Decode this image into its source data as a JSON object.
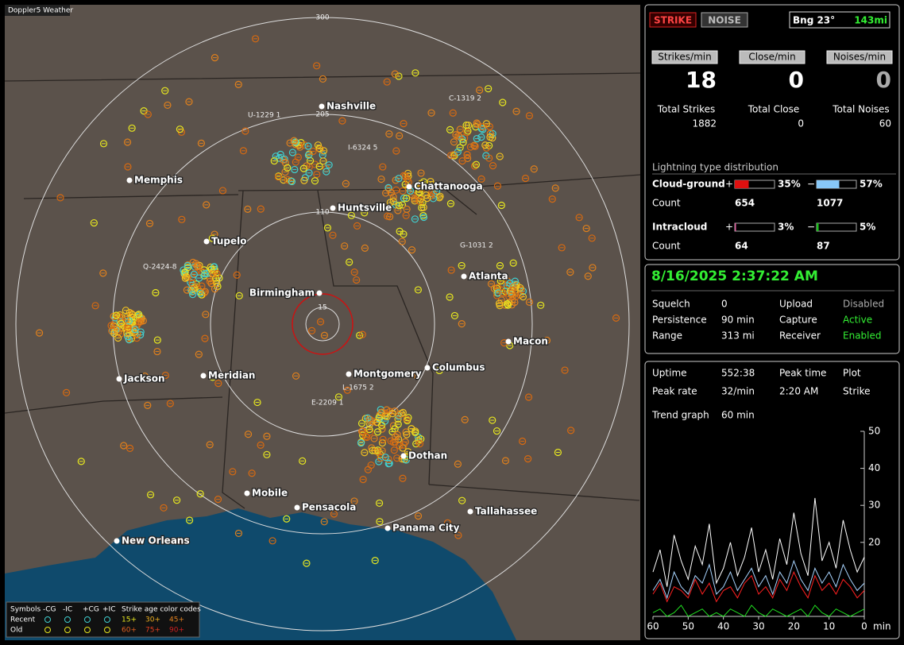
{
  "header": {
    "title": "Doppler5 Weather"
  },
  "map": {
    "ring_labels": [
      300,
      205,
      110,
      15
    ],
    "cities": [
      "Nashville",
      "Memphis",
      "Chattanooga",
      "Huntsville",
      "Tupelo",
      "Birmingham",
      "Atlanta",
      "Macon",
      "Montgomery",
      "Columbus",
      "Jackson",
      "Meridian",
      "Dothan",
      "Mobile",
      "Pensacola",
      "Tallahassee",
      "Panama City",
      "New Orleans"
    ],
    "cells": [
      "U-1229 1",
      "I-6324 5",
      "C-1319 2",
      "Q-2424-8",
      "G-1031 2",
      "L-1675 2",
      "E-2209 1"
    ]
  },
  "legend": {
    "title": "Symbols",
    "columns": [
      "-CG",
      "-IC",
      "+CG",
      "+IC"
    ],
    "age_title": "Strike age color codes",
    "rows": [
      {
        "label": "Recent",
        "ages": [
          "15+",
          "30+",
          "45+"
        ]
      },
      {
        "label": "Old",
        "ages": [
          "60+",
          "75+",
          "90+"
        ]
      }
    ]
  },
  "status": {
    "strike": "STRIKE",
    "noise": "NOISE",
    "bearing": "Bng 23°",
    "distance": "143mi"
  },
  "rates": [
    {
      "label": "Strikes/min",
      "value": 18,
      "total_label": "Total Strikes",
      "total": 1882
    },
    {
      "label": "Close/min",
      "value": 0,
      "total_label": "Total Close",
      "total": 0
    },
    {
      "label": "Noises/min",
      "value": 0,
      "total_label": "Total Noises",
      "total": 60
    }
  ],
  "distribution": {
    "title": "Lightning type distribution",
    "plus_sign": "+",
    "minus_sign": "−",
    "rows": [
      {
        "label": "Cloud-ground",
        "plus": {
          "value": 35,
          "label": "35%"
        },
        "minus": {
          "value": 57,
          "label": "57%"
        },
        "count_label": "Count",
        "plus_count": 654,
        "minus_count": 1077
      },
      {
        "label": "Intracloud",
        "plus": {
          "value": 3,
          "label": "3%"
        },
        "minus": {
          "value": 5,
          "label": "5%"
        },
        "count_label": "Count",
        "plus_count": 64,
        "minus_count": 87
      }
    ]
  },
  "datetime": "8/16/2025 2:37:22 AM",
  "settings": [
    [
      "Squelch",
      "0",
      "Upload",
      "Disabled"
    ],
    [
      "Persistence",
      "90 min",
      "Capture",
      "Active"
    ],
    [
      "Range",
      "313 mi",
      "Receiver",
      "Enabled"
    ]
  ],
  "stats": [
    [
      "Uptime",
      "552:38",
      "Peak time",
      "Plot"
    ],
    [
      "Peak rate",
      "32/min",
      "2:20 AM",
      "Strike"
    ],
    [
      "Trend graph",
      "60 min"
    ]
  ],
  "trend": {
    "ylim": [
      0,
      50
    ],
    "yticks": [
      20,
      30,
      40,
      50
    ],
    "xlim": [
      60,
      0
    ],
    "xticks": [
      60,
      50,
      40,
      30,
      20,
      10,
      0
    ],
    "x_unit": "min",
    "series": [
      {
        "color": "#ffffff",
        "values": [
          12,
          18,
          8,
          22,
          15,
          10,
          19,
          14,
          25,
          9,
          13,
          20,
          11,
          16,
          24,
          12,
          18,
          10,
          21,
          14,
          28,
          17,
          11,
          32,
          15,
          20,
          13,
          26,
          18,
          12,
          16
        ]
      },
      {
        "color": "#a8d4ff",
        "values": [
          7,
          10,
          5,
          12,
          8,
          6,
          11,
          9,
          14,
          6,
          8,
          12,
          7,
          10,
          13,
          8,
          11,
          6,
          12,
          9,
          15,
          10,
          7,
          13,
          9,
          12,
          8,
          14,
          10,
          7,
          9
        ]
      },
      {
        "color": "#ff2020",
        "values": [
          6,
          9,
          4,
          8,
          7,
          5,
          10,
          6,
          9,
          4,
          7,
          8,
          5,
          9,
          11,
          6,
          8,
          5,
          10,
          7,
          12,
          8,
          5,
          11,
          7,
          9,
          6,
          10,
          8,
          5,
          7
        ]
      },
      {
        "color": "#20e020",
        "values": [
          1,
          2,
          0,
          1,
          3,
          0,
          1,
          2,
          0,
          1,
          0,
          2,
          1,
          0,
          3,
          1,
          0,
          2,
          1,
          0,
          1,
          2,
          0,
          3,
          1,
          0,
          2,
          1,
          0,
          1,
          2
        ]
      }
    ]
  }
}
